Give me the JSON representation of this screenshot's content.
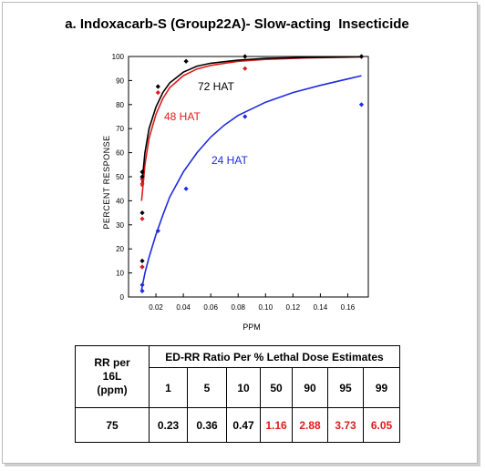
{
  "title": "a. Indoxacarb-S (Group22A)- Slow-acting  Insecticide",
  "chart_data": {
    "type": "scatter",
    "xlabel": "PPM",
    "ylabel": "PERCENT  RESPONSE",
    "xlim": [
      0,
      0.175
    ],
    "ylim": [
      0,
      100
    ],
    "xticks": [
      "0.02",
      "0.04",
      "0.06",
      "0.08",
      "0.10",
      "0.12",
      "0.14",
      "0.16"
    ],
    "yticks": [
      "0",
      "10",
      "20",
      "30",
      "40",
      "50",
      "60",
      "70",
      "80",
      "90",
      "100"
    ],
    "grid": false,
    "series": [
      {
        "name": "72 HAT",
        "color": "#000000",
        "points": [
          [
            0.01,
            52
          ],
          [
            0.01,
            50
          ],
          [
            0.01,
            35
          ],
          [
            0.01,
            15
          ],
          [
            0.0215,
            87.5
          ],
          [
            0.042,
            98
          ],
          [
            0.085,
            100
          ],
          [
            0.17,
            100
          ]
        ],
        "curve": [
          [
            0.0095,
            46
          ],
          [
            0.012,
            60
          ],
          [
            0.015,
            70
          ],
          [
            0.02,
            79
          ],
          [
            0.025,
            85
          ],
          [
            0.03,
            89
          ],
          [
            0.04,
            93.5
          ],
          [
            0.05,
            96
          ],
          [
            0.06,
            97.2
          ],
          [
            0.08,
            98.5
          ],
          [
            0.1,
            99.2
          ],
          [
            0.13,
            99.6
          ],
          [
            0.17,
            99.9
          ]
        ]
      },
      {
        "name": "48 HAT",
        "color": "#e01c1c",
        "points": [
          [
            0.01,
            49
          ],
          [
            0.01,
            47
          ],
          [
            0.01,
            32.5
          ],
          [
            0.01,
            12.5
          ],
          [
            0.0215,
            85
          ],
          [
            0.085,
            95
          ],
          [
            0.17,
            100
          ]
        ],
        "curve": [
          [
            0.0095,
            40
          ],
          [
            0.012,
            55
          ],
          [
            0.015,
            66
          ],
          [
            0.02,
            76
          ],
          [
            0.025,
            82.5
          ],
          [
            0.03,
            87
          ],
          [
            0.04,
            92
          ],
          [
            0.05,
            94.8
          ],
          [
            0.06,
            96.3
          ],
          [
            0.08,
            98
          ],
          [
            0.1,
            98.8
          ],
          [
            0.13,
            99.4
          ],
          [
            0.17,
            99.8
          ]
        ]
      },
      {
        "name": "24 HAT",
        "color": "#1f2be0",
        "points": [
          [
            0.01,
            5
          ],
          [
            0.01,
            2.5
          ],
          [
            0.01,
            12.5
          ],
          [
            0.0215,
            27.5
          ],
          [
            0.042,
            45
          ],
          [
            0.085,
            75
          ],
          [
            0.17,
            80
          ]
        ],
        "curve": [
          [
            0.0095,
            3
          ],
          [
            0.012,
            10
          ],
          [
            0.015,
            16.5
          ],
          [
            0.02,
            26
          ],
          [
            0.025,
            34
          ],
          [
            0.03,
            41.5
          ],
          [
            0.04,
            52
          ],
          [
            0.05,
            60
          ],
          [
            0.06,
            66.5
          ],
          [
            0.07,
            71.5
          ],
          [
            0.08,
            75.5
          ],
          [
            0.1,
            81
          ],
          [
            0.12,
            85
          ],
          [
            0.14,
            88
          ],
          [
            0.17,
            92
          ]
        ]
      }
    ],
    "annotations": [
      {
        "text": "72 HAT",
        "color": "#000000"
      },
      {
        "text": "48 HAT",
        "color": "#e01c1c"
      },
      {
        "text": "24 HAT",
        "color": "#1f2be0"
      }
    ]
  },
  "table": {
    "rr_header": [
      "RR per",
      "16L",
      "(ppm)"
    ],
    "group_header": "ED-RR  Ratio Per % Lethal Dose Estimates",
    "percent_labels": [
      "1",
      "5",
      "10",
      "50",
      "90",
      "95",
      "99"
    ],
    "rr_value": "75",
    "values": [
      "0.23",
      "0.36",
      "0.47",
      "1.16",
      "2.88",
      "3.73",
      "6.05"
    ],
    "value_colors": [
      "#000000",
      "#000000",
      "#000000",
      "#e01c1c",
      "#e01c1c",
      "#e01c1c",
      "#e01c1c"
    ]
  }
}
